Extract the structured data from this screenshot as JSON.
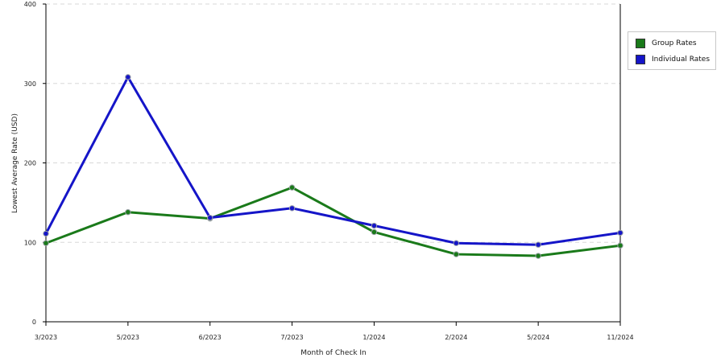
{
  "chart_data": {
    "type": "line",
    "title": "",
    "xlabel": "Month of Check In",
    "ylabel": "Lowest Average Rate (USD)",
    "categories": [
      "3/2023",
      "5/2023",
      "6/2023",
      "7/2023",
      "1/2024",
      "2/2024",
      "5/2024",
      "11/2024"
    ],
    "ylim": [
      0,
      400
    ],
    "yticks": [
      "0",
      "100",
      "200",
      "300",
      "400"
    ],
    "grid": true,
    "legend_position": "right",
    "series": [
      {
        "name": "Group Rates",
        "color": "#1a7a1a",
        "values": [
          99,
          138,
          130,
          169,
          113,
          85,
          83,
          96
        ]
      },
      {
        "name": "Individual Rates",
        "color": "#1515c8",
        "values": [
          111,
          308,
          131,
          143,
          121,
          99,
          97,
          112
        ]
      }
    ]
  }
}
